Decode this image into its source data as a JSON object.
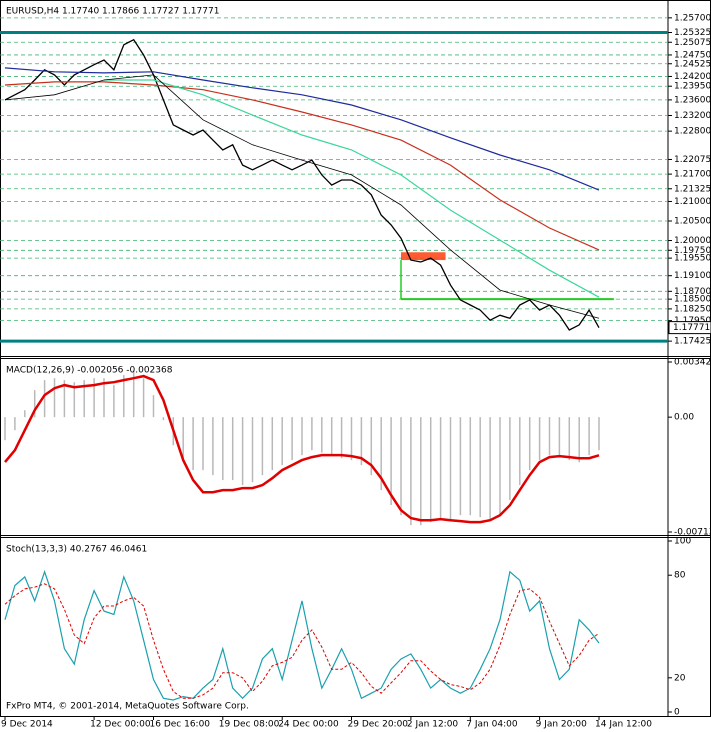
{
  "chart_data": [
    {
      "type": "line",
      "title": "EURUSD,H4  1.17740 1.17866 1.17727 1.17771",
      "ylim": [
        1.1707,
        1.2608
      ],
      "grid": true,
      "grid_color": "#3cb371",
      "yticks": [
        {
          "value": 1.257,
          "label": "1.25700"
        },
        {
          "value": 1.25325,
          "label": "1.25325"
        },
        {
          "value": 1.25075,
          "label": "1.25075"
        },
        {
          "value": 1.2475,
          "label": "1.24750"
        },
        {
          "value": 1.24525,
          "label": "1.24525"
        },
        {
          "value": 1.242,
          "label": "1.24200"
        },
        {
          "value": 1.2395,
          "label": "1.23950"
        },
        {
          "value": 1.236,
          "label": "1.23600"
        },
        {
          "value": 1.232,
          "label": "1.23200"
        },
        {
          "value": 1.228,
          "label": "1.22800"
        },
        {
          "value": 1.22075,
          "label": "1.22075"
        },
        {
          "value": 1.217,
          "label": "1.21700"
        },
        {
          "value": 1.21325,
          "label": "1.21325"
        },
        {
          "value": 1.21,
          "label": "1.21000"
        },
        {
          "value": 1.205,
          "label": "1.20500"
        },
        {
          "value": 1.2,
          "label": "1.20000"
        },
        {
          "value": 1.1975,
          "label": "1.19750"
        },
        {
          "value": 1.1955,
          "label": "1.19550"
        },
        {
          "value": 1.191,
          "label": "1.19100"
        },
        {
          "value": 1.187,
          "label": "1.18700"
        },
        {
          "value": 1.185,
          "label": "1.18500"
        },
        {
          "value": 1.1825,
          "label": "1.18250"
        },
        {
          "value": 1.1795,
          "label": "1.17950"
        },
        {
          "value": 1.17425,
          "label": "1.17425"
        }
      ],
      "last_price": {
        "value": 1.17771,
        "label": "1.17771"
      },
      "levels": [
        {
          "value": 1.25325,
          "color": "#008080"
        },
        {
          "value": 1.17425,
          "color": "#008080"
        }
      ],
      "support": {
        "value": 1.185,
        "from": 40,
        "to": 61.5,
        "color": "#22cc22"
      },
      "zone": {
        "low": 1.195,
        "high": 1.197,
        "from": 40,
        "to": 44.5,
        "color": "#ff4010"
      },
      "series": [
        {
          "color": "#000000",
          "width": 1.3,
          "values": [
            1.236,
            1.2373,
            1.2386,
            1.2411,
            1.2437,
            1.2424,
            1.2398,
            1.2424,
            1.2437,
            1.245,
            1.2462,
            1.2437,
            1.2501,
            1.2514,
            1.2475,
            1.2424,
            1.236,
            1.2296,
            1.2283,
            1.227,
            1.2283,
            1.2257,
            1.2232,
            1.2245,
            1.2193,
            1.2181,
            1.2193,
            1.2206,
            1.2193,
            1.2181,
            1.2193,
            1.2206,
            1.2168,
            1.2142,
            1.2155,
            1.2155,
            1.2142,
            1.2117,
            1.2065,
            1.204,
            1.2006,
            1.195,
            1.1945,
            1.1955,
            1.1937,
            1.1886,
            1.1848,
            1.1835,
            1.1822,
            1.1796,
            1.1809,
            1.1801,
            1.1835,
            1.1848,
            1.1822,
            1.1835,
            1.1809,
            1.1771,
            1.1784,
            1.1822,
            1.1777
          ]
        },
        {
          "color": "#1f2a9c",
          "width": 1.2,
          "x": [
            0,
            5,
            10,
            15,
            20,
            25,
            30,
            35,
            40,
            45,
            50,
            55,
            60
          ],
          "values": [
            1.2442,
            1.2432,
            1.2429,
            1.2432,
            1.2411,
            1.2391,
            1.2373,
            1.2347,
            1.2309,
            1.2263,
            1.2219,
            1.2181,
            1.2129
          ]
        },
        {
          "color": "#c8301e",
          "width": 1.2,
          "x": [
            0,
            5,
            10,
            15,
            20,
            25,
            30,
            35,
            40,
            45,
            50,
            55,
            60
          ],
          "values": [
            1.2398,
            1.2406,
            1.2406,
            1.2398,
            1.2386,
            1.236,
            1.2329,
            1.2296,
            1.2257,
            1.2193,
            1.2104,
            1.2032,
            1.1976
          ]
        },
        {
          "color": "#3cd69a",
          "width": 1.2,
          "x": [
            10,
            15,
            20,
            25,
            30,
            35,
            40,
            45,
            50,
            55,
            60
          ],
          "values": [
            1.2411,
            1.2411,
            1.2373,
            1.2321,
            1.227,
            1.2232,
            1.2168,
            1.2078,
            1.2001,
            1.1924,
            1.1855
          ]
        },
        {
          "color": "#000000",
          "width": 0.8,
          "x": [
            0,
            5,
            10,
            15,
            20,
            25,
            30,
            35,
            40,
            45,
            50,
            55,
            60
          ],
          "values": [
            1.236,
            1.2373,
            1.2411,
            1.2424,
            1.2309,
            1.2245,
            1.2206,
            1.2168,
            1.2091,
            1.1976,
            1.1873,
            1.1835,
            1.1801
          ]
        }
      ]
    },
    {
      "type": "bar",
      "title": "MACD(12,26,9) -0.002056 -0.002368",
      "ylim": [
        -0.007134,
        0.003426
      ],
      "yticks": [
        0.003426,
        {
          "value": 0,
          "label": "0.00"
        },
        -0.007134
      ],
      "series": [
        {
          "style": "histogram",
          "color": "#b8b8b8",
          "values": [
            -0.00143,
            -0.00081,
            0.00043,
            0.00168,
            0.0023,
            0.00242,
            0.0023,
            0.00217,
            0.0023,
            0.00242,
            0.00242,
            0.00199,
            0.00261,
            0.00292,
            0.00242,
            0.00137,
            -0.00019,
            -0.00174,
            -0.00267,
            -0.00329,
            -0.00329,
            -0.0036,
            -0.00391,
            -0.00391,
            -0.00422,
            -0.00404,
            -0.0036,
            -0.00329,
            -0.00298,
            -0.00267,
            -0.00236,
            -0.00205,
            -0.0022,
            -0.00236,
            -0.00255,
            -0.00267,
            -0.00298,
            -0.0036,
            -0.00453,
            -0.00546,
            -0.00609,
            -0.00671,
            -0.00671,
            -0.00652,
            -0.0064,
            -0.0064,
            -0.00609,
            -0.00609,
            -0.00621,
            -0.0064,
            -0.00609,
            -0.00515,
            -0.00422,
            -0.00329,
            -0.00267,
            -0.00236,
            -0.00236,
            -0.00267,
            -0.0028,
            -0.00236,
            -0.002056
          ]
        },
        {
          "style": "line",
          "color": "#e00000",
          "width": 2.5,
          "values": [
            -0.00279,
            -0.00205,
            -0.00081,
            0.00043,
            0.00137,
            0.0018,
            0.00199,
            0.00186,
            0.00193,
            0.00199,
            0.00211,
            0.00217,
            0.0023,
            0.00242,
            0.00255,
            0.0023,
            0.00106,
            -0.00081,
            -0.00267,
            -0.00391,
            -0.00466,
            -0.00466,
            -0.00453,
            -0.00453,
            -0.00441,
            -0.00441,
            -0.00422,
            -0.00379,
            -0.00329,
            -0.00298,
            -0.00267,
            -0.00248,
            -0.00236,
            -0.00236,
            -0.00236,
            -0.00242,
            -0.00255,
            -0.00298,
            -0.00379,
            -0.00484,
            -0.00578,
            -0.00627,
            -0.0064,
            -0.0064,
            -0.00633,
            -0.0064,
            -0.00646,
            -0.00652,
            -0.00652,
            -0.0064,
            -0.00609,
            -0.00547,
            -0.00453,
            -0.0036,
            -0.00279,
            -0.00248,
            -0.00242,
            -0.00248,
            -0.00255,
            -0.00255,
            -0.002368
          ]
        }
      ]
    },
    {
      "type": "line",
      "title": "Stoch(13,3,3) 40.2767 46.0461",
      "ylim": [
        0,
        100
      ],
      "yticks": [
        100,
        80,
        20,
        0
      ],
      "categories": [
        "9 Dec 2014",
        null,
        null,
        null,
        null,
        null,
        null,
        null,
        null,
        "12 Dec 00:00",
        null,
        null,
        null,
        null,
        null,
        "16 Dec 16:00",
        null,
        null,
        null,
        null,
        null,
        null,
        "19 Dec 08:00",
        null,
        null,
        null,
        null,
        null,
        "24 Dec 00:00",
        null,
        null,
        null,
        null,
        null,
        null,
        "29 Dec 20:00",
        null,
        null,
        null,
        null,
        null,
        "2 Jan 12:00",
        null,
        null,
        null,
        null,
        null,
        "7 Jan 04:00",
        null,
        null,
        null,
        null,
        null,
        null,
        "9 Jan 20:00",
        null,
        null,
        null,
        null,
        null,
        "14 Jan 12:00"
      ],
      "series": [
        {
          "style": "line",
          "color": "#1aa0b0",
          "width": 1.2,
          "values": [
            54,
            74,
            79,
            65,
            82,
            65,
            37,
            28,
            54,
            71,
            59,
            57,
            79,
            65,
            42,
            19,
            8,
            7,
            9,
            8,
            14,
            19,
            37,
            14,
            8,
            14,
            31,
            37,
            19,
            42,
            65,
            37,
            14,
            25,
            37,
            25,
            8,
            11,
            14,
            25,
            31,
            34,
            25,
            14,
            19,
            14,
            11,
            14,
            25,
            37,
            54,
            82,
            77,
            59,
            65,
            37,
            19,
            25,
            54,
            48,
            40.2767
          ]
        },
        {
          "style": "line",
          "dash": true,
          "color": "#e00000",
          "width": 1,
          "values": [
            63,
            68,
            72,
            73,
            75,
            72,
            60,
            45,
            40,
            55,
            62,
            62,
            65,
            67,
            62,
            42,
            25,
            12,
            8,
            8,
            10,
            14,
            23,
            23,
            20,
            12,
            18,
            27,
            29,
            32,
            42,
            48,
            38,
            25,
            25,
            29,
            23,
            15,
            11,
            17,
            23,
            30,
            30,
            24,
            19,
            16,
            15,
            13,
            17,
            25,
            39,
            57,
            71,
            72,
            67,
            53,
            40,
            27,
            33,
            42,
            46.0461
          ]
        }
      ]
    }
  ],
  "footer": "FxPro MT4, © 2001-2014, MetaQuotes Software Corp."
}
